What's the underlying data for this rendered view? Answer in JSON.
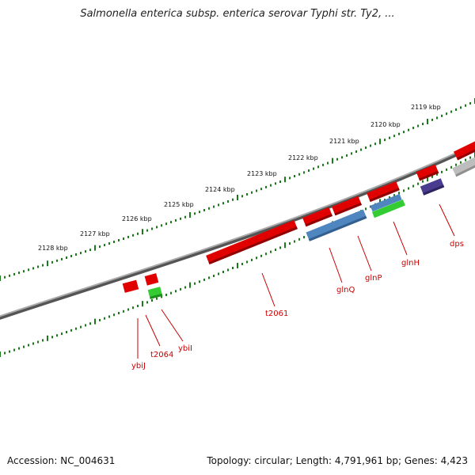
{
  "title": "Salmonella enterica subsp. enterica serovar Typhi str. Ty2, ...",
  "footer": {
    "accession": "Accession: NC_004631",
    "topology": "Topology: circular; Length: 4,791,961 bp; Genes: 4,423"
  },
  "scale": {
    "ticks": [
      "2119 kbp",
      "2120 kbp",
      "2121 kbp",
      "2122 kbp",
      "2123 kbp",
      "2124 kbp",
      "2125 kbp",
      "2126 kbp",
      "2127 kbp",
      "2128 kbp"
    ]
  },
  "genes": [
    "dps",
    "glnH",
    "glnP",
    "glnQ",
    "t2061",
    "ybiI",
    "t2064",
    "ybiJ"
  ],
  "colors": {
    "backbone": "#808080",
    "tick_ring": "#1a7a1a",
    "gene_red": "#e00000",
    "gene_blue": "#4f86c0",
    "gene_green": "#33cc33",
    "gene_purple": "#4a3d8f",
    "gene_gray": "#bdbdbd",
    "label_red": "#cc0000"
  }
}
